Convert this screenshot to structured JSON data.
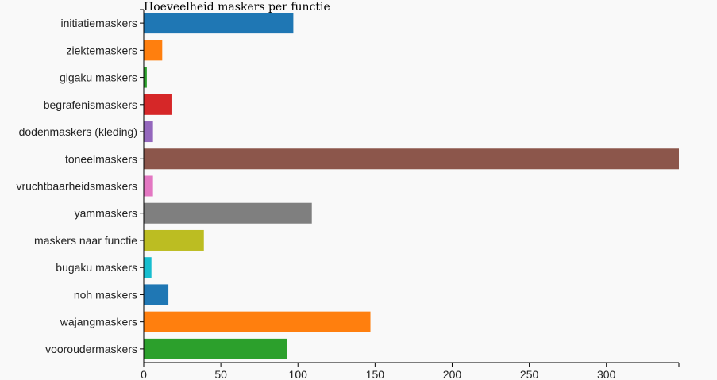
{
  "chart_data": {
    "type": "bar",
    "orientation": "horizontal",
    "title": "Hoeveelheid maskers per functie",
    "xlabel": "",
    "ylabel": "",
    "xlim": [
      0,
      347
    ],
    "x_ticks": [
      0,
      50,
      100,
      150,
      200,
      250,
      300
    ],
    "grid": false,
    "categories": [
      "initiatiemaskers",
      "ziektemaskers",
      "gigaku maskers",
      "begrafenismaskers",
      "dodenmaskers (kleding)",
      "toneelmaskers",
      "vruchtbaarheidsmaskers",
      "yammaskers",
      "maskers naar functie",
      "bugaku maskers",
      "noh maskers",
      "wajangmaskers",
      "vooroudermaskers"
    ],
    "values": [
      97,
      12,
      2,
      18,
      6,
      347,
      6,
      109,
      39,
      5,
      16,
      147,
      93
    ],
    "colors": [
      "#1f77b4",
      "#ff7f0e",
      "#2ca02c",
      "#d62728",
      "#9467bd",
      "#8c564b",
      "#e377c2",
      "#7f7f7f",
      "#bcbd22",
      "#17becf",
      "#1f77b4",
      "#ff7f0e",
      "#2ca02c"
    ]
  }
}
